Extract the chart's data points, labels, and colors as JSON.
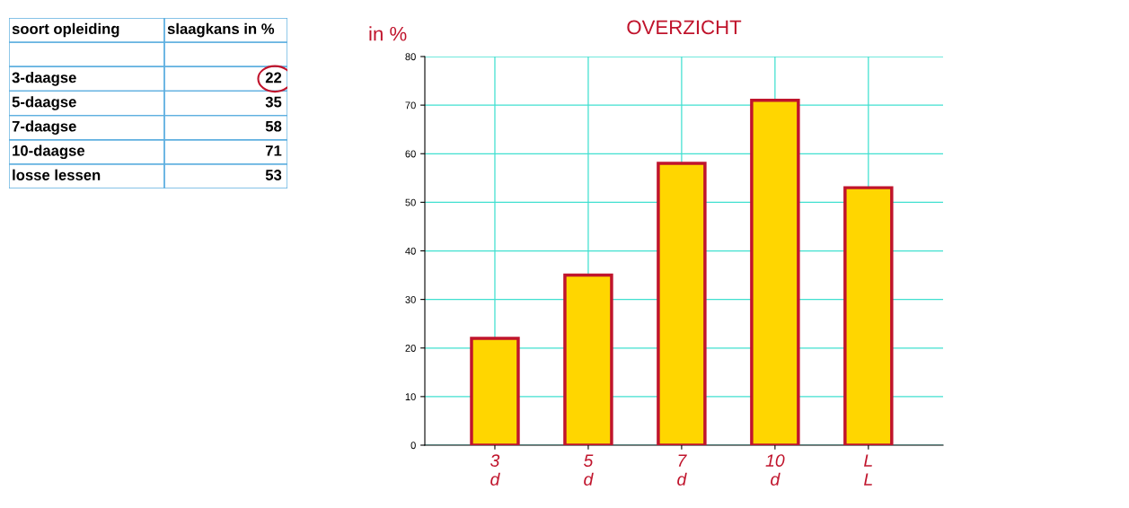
{
  "chart_data": [
    {
      "type": "other",
      "annotations": [
        "soort opleiding",
        "slaagkans in %",
        "3-daagse",
        "22",
        "5-daagse",
        "35",
        "7-daagse",
        "58",
        "10-daagse",
        "71",
        "losse lessen",
        "53"
      ]
    },
    {
      "type": "bar",
      "title": "OVERZICHT",
      "ylabel": "in %",
      "categories": [
        "3\nd",
        "5\nd",
        "7\nd",
        "10\nd",
        "L\nL"
      ],
      "values": [
        22,
        35,
        58,
        71,
        53
      ],
      "color": "#ffd600",
      "ylim": [
        0,
        80
      ],
      "yticks": [
        0,
        10,
        20,
        30,
        40,
        50,
        60,
        70,
        80
      ],
      "grid": true
    }
  ]
}
